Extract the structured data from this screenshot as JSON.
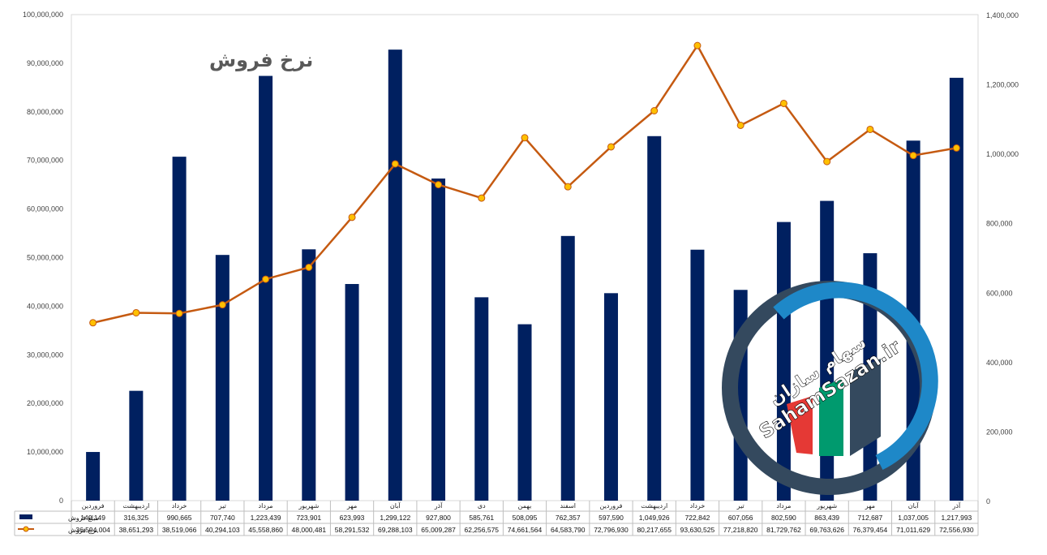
{
  "chart_data": {
    "type": "bar",
    "title": "نرخ فروش",
    "categories": [
      "فروردین",
      "اردیبهشت",
      "خرداد",
      "تیر",
      "مرداد",
      "شهریور",
      "مهر",
      "آبان",
      "آذر",
      "دی",
      "بهمن",
      "اسفند",
      "فروردین",
      "اردیبهشت",
      "خرداد",
      "تیر",
      "مرداد",
      "شهریور",
      "مهر",
      "آبان",
      "آذر"
    ],
    "ylim_left": [
      0,
      100000000
    ],
    "yticks_left": [
      0,
      10000000,
      20000000,
      30000000,
      40000000,
      50000000,
      60000000,
      70000000,
      80000000,
      90000000,
      100000000
    ],
    "ytick_labels_left": [
      "0",
      "10,000,000",
      "20,000,000",
      "30,000,000",
      "40,000,000",
      "50,000,000",
      "60,000,000",
      "70,000,000",
      "80,000,000",
      "90,000,000",
      "100,000,000"
    ],
    "ylim_right": [
      0,
      1400000
    ],
    "yticks_right": [
      0,
      200000,
      400000,
      600000,
      800000,
      1000000,
      1200000,
      1400000
    ],
    "ytick_labels_right": [
      "0",
      "200,000",
      "400,000",
      "600,000",
      "800,000",
      "1,000,000",
      "1,200,000",
      "1,400,000"
    ],
    "grid": false,
    "legend_position": "bottom-table",
    "series": [
      {
        "name": "مبلغ فروش",
        "type": "bar",
        "axis": "right",
        "color": "#002060",
        "values": [
          140149,
          316325,
          990665,
          707740,
          1223439,
          723901,
          623993,
          1299122,
          927800,
          585761,
          508095,
          762357,
          597590,
          1049926,
          722842,
          607056,
          802590,
          863439,
          712687,
          1037005,
          1217993
        ],
        "labels": [
          "140,149",
          "316,325",
          "990,665",
          "707,740",
          "1,223,439",
          "723,901",
          "623,993",
          "1,299,122",
          "927,800",
          "585,761",
          "508,095",
          "762,357",
          "597,590",
          "1,049,926",
          "722,842",
          "607,056",
          "802,590",
          "863,439",
          "712,687",
          "1,037,005",
          "1,217,993"
        ]
      },
      {
        "name": "نرخ فروش",
        "type": "line",
        "axis": "left",
        "color": "#C55A11",
        "marker_color": "#FFC000",
        "values": [
          36594004,
          38651293,
          38519066,
          40294103,
          45558860,
          48000481,
          58291532,
          69288103,
          65009287,
          62256575,
          74661564,
          64583790,
          72796930,
          80217655,
          93630525,
          77218820,
          81729762,
          69763626,
          76379454,
          71011629,
          72556930
        ],
        "labels": [
          "36,594,004",
          "38,651,293",
          "38,519,066",
          "40,294,103",
          "45,558,860",
          "48,000,481",
          "58,291,532",
          "69,288,103",
          "65,009,287",
          "62,256,575",
          "74,661,564",
          "64,583,790",
          "72,796,930",
          "80,217,655",
          "93,630,525",
          "77,218,820",
          "81,729,762",
          "69,763,626",
          "76,379,454",
          "71,011,629",
          "72,556,930"
        ]
      }
    ]
  },
  "logo": {
    "line1": "سهام سازان",
    "line2": "SahamSazan.ir",
    "colors": [
      "#E53935",
      "#009A6E",
      "#34495E",
      "#1E88C8"
    ]
  }
}
